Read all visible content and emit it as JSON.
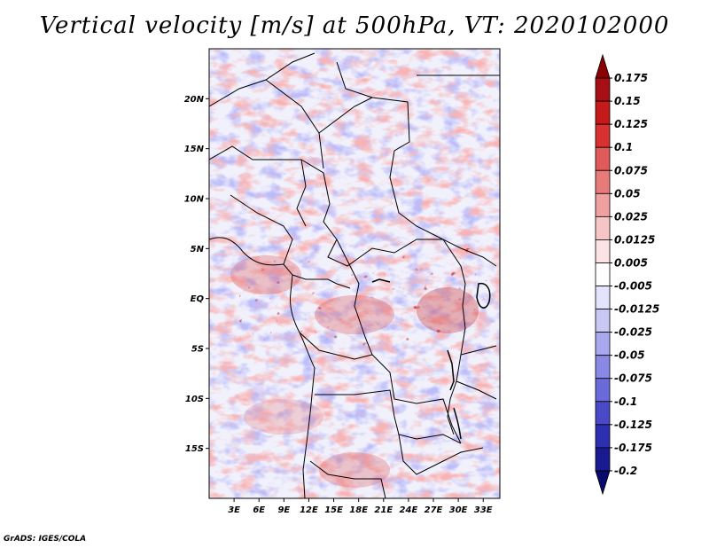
{
  "title": "Vertical velocity [m/s] at 500hPa, VT: 2020102000",
  "credit": "GrADS: IGES/COLA",
  "map": {
    "lat_ticks": [
      "20N",
      "15N",
      "10N",
      "5N",
      "EQ",
      "5S",
      "10S",
      "15S"
    ],
    "lon_ticks": [
      "3E",
      "6E",
      "9E",
      "12E",
      "15E",
      "18E",
      "21E",
      "24E",
      "27E",
      "30E",
      "33E"
    ],
    "lat_range": [
      -20,
      25
    ],
    "lon_range": [
      0,
      35
    ]
  },
  "colorbar": {
    "labels": [
      "0.175",
      "0.15",
      "0.125",
      "0.1",
      "0.075",
      "0.05",
      "0.025",
      "0.0125",
      "0.005",
      "-0.005",
      "-0.0125",
      "-0.025",
      "-0.05",
      "-0.075",
      "-0.1",
      "-0.125",
      "-0.175",
      "-0.2"
    ],
    "colors": [
      "#8b0000",
      "#a50f15",
      "#c41a1a",
      "#d93030",
      "#e05a5a",
      "#e87a7a",
      "#f0a0a0",
      "#f6c6c6",
      "#fbe3e3",
      "#ffffff",
      "#e3e3fb",
      "#c8c8f4",
      "#a8a8ee",
      "#8a8ae6",
      "#6a6ad8",
      "#4a4ac8",
      "#2e2eb0",
      "#1a1a90",
      "#0a0a6e"
    ]
  }
}
